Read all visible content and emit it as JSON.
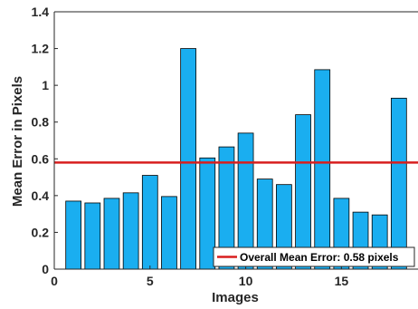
{
  "chart_data": {
    "type": "bar",
    "xlabel": "Images",
    "ylabel": "Mean Error in Pixels",
    "xlim": [
      0,
      19
    ],
    "ylim": [
      0,
      1.4
    ],
    "x_ticks": [
      0,
      5,
      10,
      15
    ],
    "y_ticks": [
      0,
      0.2,
      0.4,
      0.6,
      0.8,
      1,
      1.2,
      1.4
    ],
    "x": [
      1,
      2,
      3,
      4,
      5,
      6,
      7,
      8,
      9,
      10,
      11,
      12,
      13,
      14,
      15,
      16,
      17,
      18
    ],
    "values": [
      0.37,
      0.36,
      0.385,
      0.415,
      0.51,
      0.395,
      1.2,
      0.605,
      0.665,
      0.74,
      0.49,
      0.46,
      0.84,
      1.085,
      0.385,
      0.31,
      0.295,
      0.93
    ],
    "bar_color": "#1AAEF0",
    "bar_edge_color": "#000000",
    "mean_line": {
      "value": 0.58,
      "color": "#D81E1E",
      "label": "Overall Mean Error: 0.58 pixels"
    },
    "legend": {
      "position": "bottom-right"
    },
    "grid": false
  }
}
